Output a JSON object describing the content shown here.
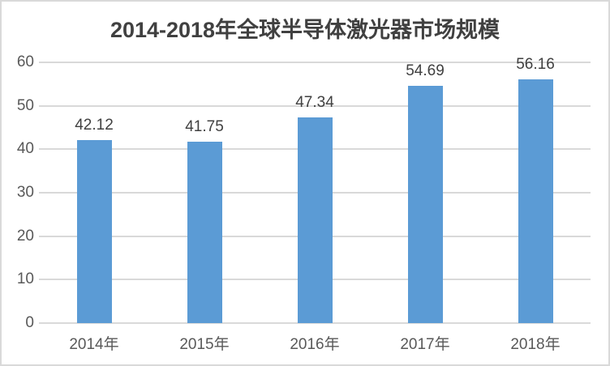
{
  "chart_data": {
    "type": "bar",
    "title": "2014-2018年全球半导体激光器市场规模",
    "categories": [
      "2014年",
      "2015年",
      "2016年",
      "2017年",
      "2018年"
    ],
    "values": [
      42.12,
      41.75,
      47.34,
      54.69,
      56.16
    ],
    "data_labels": [
      "42.12",
      "41.75",
      "47.34",
      "54.69",
      "56.16"
    ],
    "xlabel": "",
    "ylabel": "",
    "ylim": [
      0,
      60
    ],
    "yticks": [
      0,
      10,
      20,
      30,
      40,
      50,
      60
    ],
    "grid": true,
    "legend": "none",
    "data_labels_shown": true
  },
  "colors": {
    "bar": "#5B9BD5",
    "gridline": "#D9D9D9",
    "frame_border": "#D9D9D9",
    "axis_label": "#595959",
    "data_label": "#404040",
    "title": "#404040",
    "background": "#FFFFFF"
  }
}
